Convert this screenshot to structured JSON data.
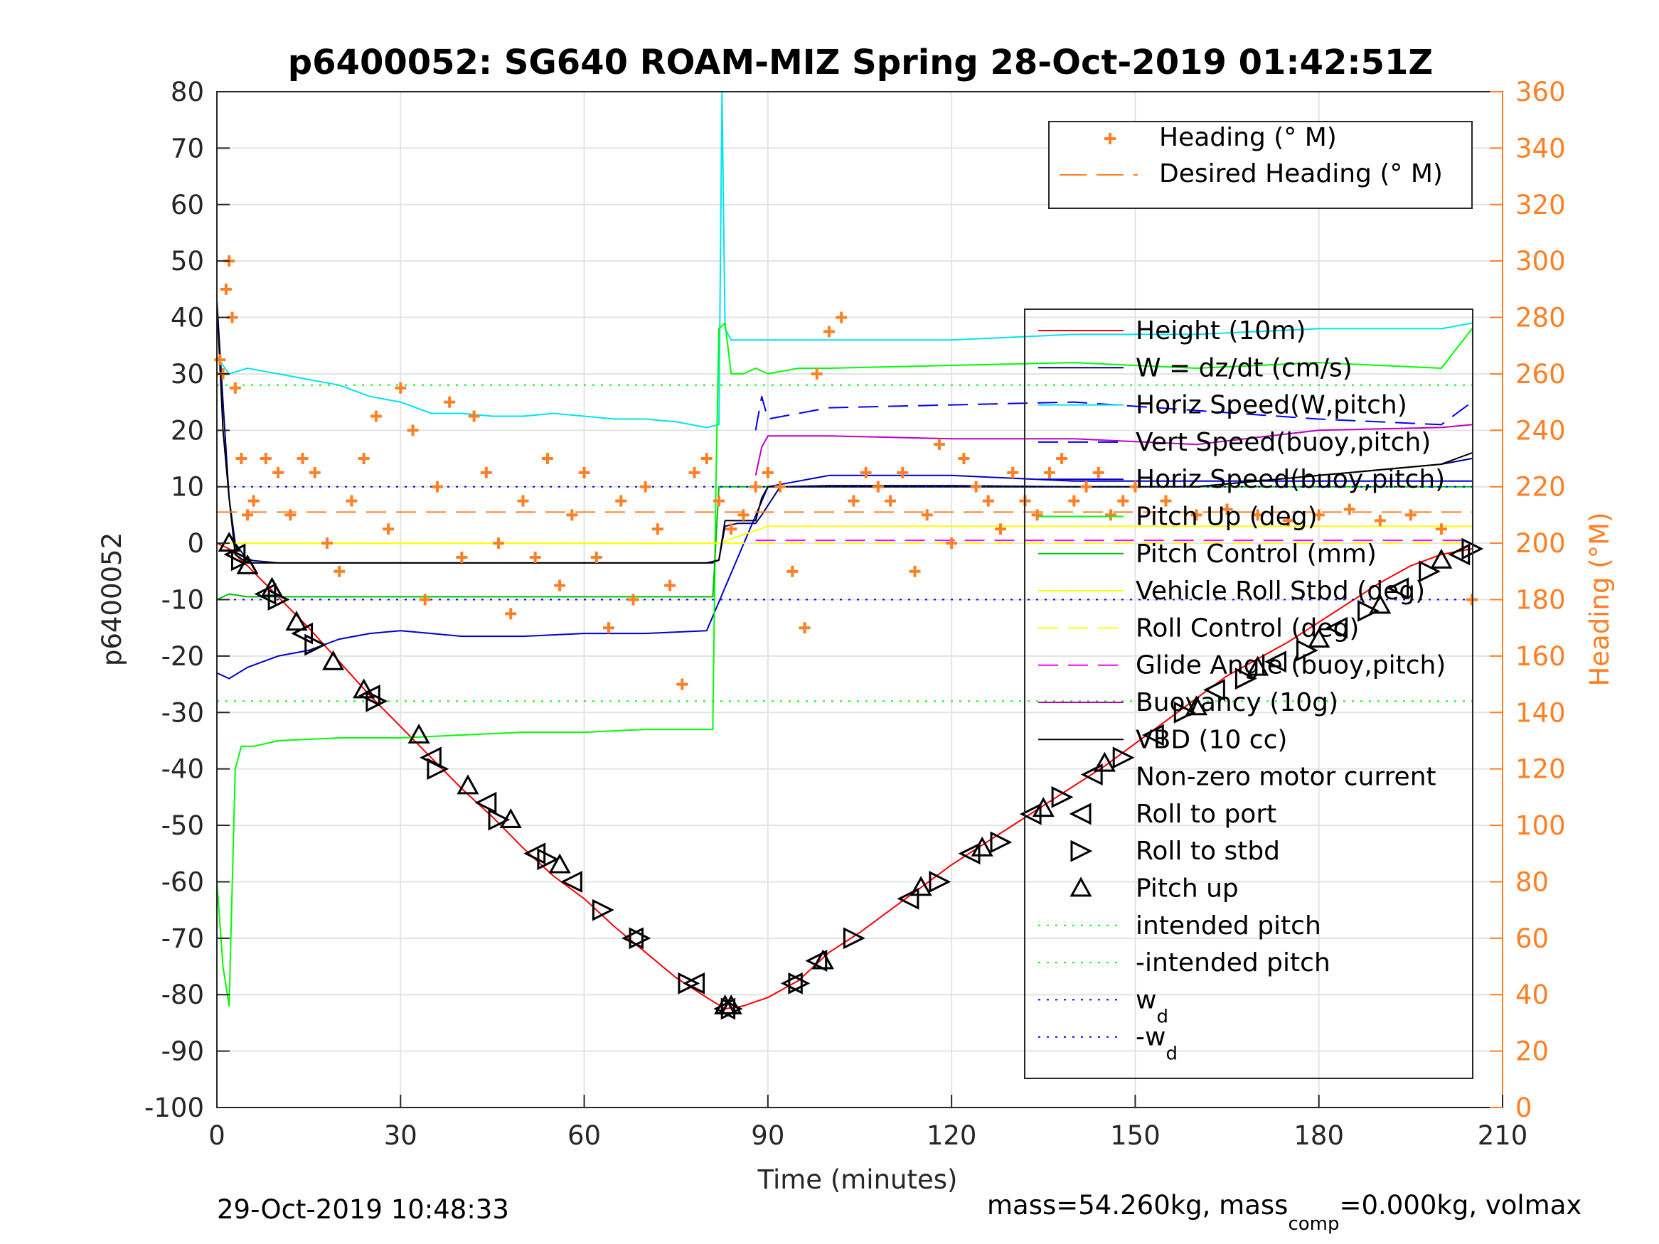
{
  "chart_data": {
    "type": "line",
    "title": "p6400052: SG640 ROAM-MIZ Spring 28-Oct-2019 01:42:51Z",
    "xlabel": "Time (minutes)",
    "ylabel": "p6400052",
    "y2label": "Heading (°M)",
    "xlim": [
      0,
      210
    ],
    "ylim": [
      -100,
      80
    ],
    "y2lim": [
      0,
      360
    ],
    "xticks": [
      "0",
      "30",
      "60",
      "90",
      "120",
      "150",
      "180",
      "210"
    ],
    "yticks": [
      "80",
      "70",
      "60",
      "50",
      "40",
      "30",
      "20",
      "10",
      "0",
      "-10",
      "-20",
      "-30",
      "-40",
      "-50",
      "-60",
      "-70",
      "-80",
      "-90",
      "-100"
    ],
    "y2ticks": [
      "360",
      "340",
      "320",
      "300",
      "280",
      "260",
      "240",
      "220",
      "200",
      "180",
      "160",
      "140",
      "120",
      "100",
      "80",
      "60",
      "40",
      "20",
      "0"
    ],
    "grid": true,
    "colors": {
      "height": "#ff0000",
      "w": "#000080",
      "horiz_w": "#00ffff",
      "vert_buoy": "#0000ff",
      "horiz_buoy": "#0000cd",
      "pitch": "#00ff00",
      "pitch_control": "#00c000",
      "roll": "#ffff00",
      "glide": "#ff00ff",
      "buoyancy": "#c000c0",
      "vbd": "#000000",
      "heading": "#ff7f24",
      "intended": "#00ff00",
      "wd": "#0000ff"
    },
    "series": [
      {
        "name": "Height (10m)",
        "x": [
          0,
          2,
          5,
          10,
          15,
          20,
          25,
          30,
          35,
          40,
          45,
          50,
          55,
          60,
          65,
          70,
          75,
          80,
          83,
          86,
          90,
          95,
          100,
          105,
          110,
          115,
          120,
          125,
          130,
          135,
          140,
          145,
          150,
          155,
          160,
          165,
          170,
          175,
          180,
          185,
          190,
          195,
          200,
          205
        ],
        "y": [
          0,
          -1,
          -4,
          -9.5,
          -15,
          -21,
          -27,
          -32.5,
          -38,
          -43.5,
          -48.5,
          -54,
          -59,
          -63,
          -68,
          -72.5,
          -77,
          -80.5,
          -82.5,
          -82,
          -80.5,
          -77.5,
          -72.5,
          -69,
          -65,
          -61,
          -57,
          -53.5,
          -50,
          -46.5,
          -43,
          -39.5,
          -35.5,
          -31.5,
          -27.5,
          -23.5,
          -20.5,
          -17.5,
          -14,
          -10.5,
          -7,
          -4,
          -2,
          -1
        ]
      },
      {
        "name": "W = dz/dt (cm/s)",
        "x": [
          0,
          1,
          2,
          3,
          5,
          10,
          20,
          30,
          40,
          50,
          60,
          70,
          80,
          81,
          82,
          83,
          85,
          88,
          89,
          92,
          100,
          120,
          140,
          160,
          180,
          200,
          205
        ],
        "y": [
          43,
          25,
          8,
          0,
          -3,
          -3.5,
          -3.5,
          -3.5,
          -3.5,
          -3.5,
          -3.5,
          -3.5,
          -3.5,
          -3.5,
          -3,
          3,
          3.5,
          3.5,
          5,
          10,
          10.2,
          10.2,
          10,
          10,
          12,
          14,
          15
        ]
      },
      {
        "name": "Horiz Speed(W,pitch)",
        "x": [
          0,
          2,
          5,
          10,
          15,
          20,
          25,
          30,
          35,
          40,
          45,
          50,
          55,
          60,
          65,
          70,
          75,
          80,
          82,
          82.5,
          83,
          84,
          88,
          92,
          100,
          120,
          140,
          160,
          180,
          190,
          200,
          205
        ],
        "y": [
          33,
          30,
          31,
          30,
          29,
          28,
          26,
          25,
          23,
          23,
          22.5,
          22.5,
          23,
          22.5,
          22,
          22,
          21.5,
          20.5,
          21,
          80,
          38,
          36,
          36,
          36,
          36,
          36,
          37,
          37,
          38,
          38,
          38,
          39
        ]
      },
      {
        "name": "Vert Speed(buoy,pitch)",
        "x": [
          88,
          89,
          90,
          95,
          100,
          120,
          140,
          160,
          180,
          200,
          205
        ],
        "y": [
          20,
          26,
          22,
          23,
          24,
          24.5,
          25,
          23.5,
          22,
          21,
          25
        ]
      },
      {
        "name": "Horiz Speed(buoy,pitch)",
        "x": [
          0,
          2,
          5,
          10,
          15,
          20,
          25,
          30,
          35,
          40,
          50,
          60,
          70,
          80,
          90,
          100,
          120,
          140,
          160,
          180,
          200,
          205
        ],
        "y": [
          -23,
          -24,
          -22,
          -20,
          -19,
          -17,
          -16,
          -15.5,
          -16,
          -16.5,
          -16.5,
          -16,
          -16,
          -15.5,
          10,
          12,
          12,
          11,
          11,
          11,
          11,
          11
        ]
      },
      {
        "name": "Pitch Up (deg)",
        "x": [
          0,
          1,
          2,
          3,
          4,
          6,
          10,
          20,
          30,
          40,
          50,
          60,
          70,
          80,
          81,
          81.5,
          82,
          83,
          84,
          86,
          88,
          90,
          95,
          100,
          120,
          140,
          160,
          180,
          200,
          205
        ],
        "y": [
          -60,
          -75,
          -82,
          -40,
          -36,
          -36,
          -35,
          -34.5,
          -34.5,
          -34,
          -33.5,
          -33.5,
          -33,
          -33,
          -33,
          10,
          38,
          39,
          30,
          30,
          31,
          30,
          31,
          31,
          31.5,
          32,
          31,
          32,
          31,
          38
        ]
      },
      {
        "name": "Pitch Control (mm)",
        "x": [
          0,
          2,
          5,
          10,
          20,
          40,
          60,
          80,
          81,
          82,
          85,
          100,
          120,
          140,
          160,
          180,
          200,
          205
        ],
        "y": [
          -10,
          -9,
          -9.5,
          -9.5,
          -9.5,
          -9.5,
          -9.5,
          -9.5,
          -9.5,
          10,
          10,
          10,
          10,
          10,
          10,
          10,
          10,
          10
        ]
      },
      {
        "name": "Vehicle Roll Stbd (deg)",
        "x": [
          0,
          5,
          10,
          20,
          30,
          40,
          50,
          60,
          70,
          80,
          82,
          90,
          100,
          120,
          140,
          160,
          180,
          200,
          205
        ],
        "y": [
          0,
          0,
          0,
          0,
          0,
          0,
          0,
          0,
          0,
          0,
          0,
          3,
          3,
          3,
          3,
          3,
          3,
          3,
          3
        ]
      },
      {
        "name": "Roll Control (deg)",
        "x": [
          0,
          205
        ],
        "y": [
          0,
          0
        ]
      },
      {
        "name": "Glide Angle (buoy,pitch)",
        "x": [
          88,
          205
        ],
        "y": [
          0.5,
          0.5
        ]
      },
      {
        "name": "Buoyancy (10g)",
        "x": [
          88,
          89,
          90,
          100,
          120,
          140,
          150,
          160,
          180,
          200,
          205
        ],
        "y": [
          12,
          17,
          19,
          19,
          18.5,
          18.5,
          18,
          17.5,
          20,
          20.5,
          21
        ]
      },
      {
        "name": "VBD (10 cc)",
        "x": [
          0,
          1,
          2,
          3,
          5,
          10,
          20,
          40,
          60,
          80,
          82,
          83,
          88,
          89,
          90,
          100,
          120,
          140,
          160,
          180,
          200,
          205
        ],
        "y": [
          43,
          20,
          8,
          -2,
          -3.5,
          -3.5,
          -3.5,
          -3.5,
          -3.5,
          -3.5,
          -3,
          4,
          4,
          8,
          10,
          10,
          10,
          10,
          10,
          12,
          14,
          16
        ]
      },
      {
        "name": "intended pitch",
        "x": [
          0,
          205
        ],
        "y": [
          28,
          28
        ]
      },
      {
        "name": "-intended pitch",
        "x": [
          0,
          205
        ],
        "y": [
          -28,
          -28
        ]
      },
      {
        "name": "w_d",
        "x": [
          0,
          205
        ],
        "y": [
          10,
          10
        ]
      },
      {
        "name": "-w_d",
        "x": [
          0,
          205
        ],
        "y": [
          -10,
          -10
        ]
      },
      {
        "name": "Heading (° M)",
        "axis": "right",
        "x": [
          0.5,
          1,
          1.5,
          2,
          2.5,
          3,
          4,
          5,
          6,
          8,
          10,
          12,
          14,
          16,
          18,
          20,
          22,
          24,
          26,
          28,
          30,
          32,
          34,
          36,
          38,
          40,
          42,
          44,
          46,
          48,
          50,
          52,
          54,
          56,
          58,
          60,
          62,
          64,
          66,
          68,
          70,
          72,
          74,
          76,
          78,
          80,
          82,
          84,
          86,
          88,
          90,
          92,
          94,
          96,
          98,
          100,
          102,
          104,
          106,
          108,
          110,
          112,
          114,
          116,
          118,
          120,
          122,
          124,
          126,
          128,
          130,
          132,
          134,
          136,
          138,
          140,
          142,
          144,
          146,
          148,
          150,
          155,
          160,
          165,
          170,
          175,
          180,
          185,
          190,
          195,
          200,
          205
        ],
        "y": [
          265,
          260,
          290,
          300,
          280,
          255,
          230,
          210,
          215,
          230,
          225,
          210,
          230,
          225,
          200,
          190,
          215,
          230,
          245,
          205,
          255,
          240,
          180,
          220,
          250,
          195,
          245,
          225,
          200,
          175,
          215,
          195,
          230,
          185,
          210,
          225,
          195,
          170,
          215,
          180,
          220,
          205,
          185,
          150,
          225,
          230,
          215,
          205,
          210,
          220,
          225,
          220,
          190,
          170,
          260,
          275,
          280,
          215,
          225,
          220,
          215,
          225,
          190,
          210,
          235,
          200,
          230,
          220,
          215,
          205,
          225,
          215,
          210,
          225,
          230,
          215,
          220,
          225,
          210,
          215,
          220,
          215,
          210,
          212,
          210,
          208,
          210,
          212,
          208,
          210,
          205,
          180
        ]
      },
      {
        "name": "Desired Heading (° M)",
        "axis": "right",
        "x": [
          0,
          205
        ],
        "y": [
          211,
          211
        ]
      },
      {
        "name": "Roll to port",
        "marker": "left-triangle",
        "x": [
          3,
          8,
          14,
          25,
          35,
          44,
          52,
          58,
          68,
          78,
          83,
          94,
          98,
          113,
          123,
          133,
          143,
          153,
          163,
          173,
          183,
          193,
          203
        ],
        "y": [
          -2,
          -9,
          -16,
          -27,
          -38,
          -46,
          -55,
          -60,
          -70,
          -78,
          -82.5,
          -78,
          -74,
          -63,
          -55,
          -48,
          -41,
          -34,
          -26,
          -21,
          -15,
          -8,
          -2
        ]
      },
      {
        "name": "Roll to stbd",
        "marker": "right-triangle",
        "x": [
          4,
          10,
          16,
          26,
          36,
          46,
          54,
          63,
          69,
          77,
          84,
          95,
          104,
          118,
          128,
          138,
          148,
          158,
          168,
          178,
          188,
          198,
          205
        ],
        "y": [
          -3,
          -10,
          -18,
          -28,
          -40,
          -49,
          -56,
          -65,
          -70,
          -78,
          -82.5,
          -78,
          -70,
          -60,
          -53,
          -45,
          -38,
          -30,
          -24,
          -19,
          -12,
          -5,
          -1
        ]
      },
      {
        "name": "Pitch up",
        "marker": "up-triangle",
        "x": [
          2,
          5,
          9,
          13,
          19,
          24,
          33,
          41,
          48,
          56,
          83,
          84,
          99,
          115,
          125,
          135,
          145,
          160,
          170,
          180,
          190,
          200
        ],
        "y": [
          0,
          -4,
          -8,
          -14,
          -21,
          -26,
          -34,
          -43,
          -49,
          -57,
          -82,
          -82,
          -74,
          -61,
          -54,
          -47,
          -39,
          -29,
          -22,
          -17,
          -11,
          -3
        ]
      }
    ]
  },
  "legend_top": [
    {
      "label": "Heading (° M)"
    },
    {
      "label": "Desired Heading (° M)"
    }
  ],
  "legend_main": [
    {
      "label": "Height (10m)"
    },
    {
      "label": "W = dz/dt (cm/s)"
    },
    {
      "label": "Horiz Speed(W,pitch)"
    },
    {
      "label": "Vert Speed(buoy,pitch)"
    },
    {
      "label": "Horiz Speed(buoy,pitch)"
    },
    {
      "label": "Pitch Up (deg)"
    },
    {
      "label": "Pitch Control (mm)"
    },
    {
      "label": "Vehicle Roll Stbd (deg)"
    },
    {
      "label": "Roll Control (deg)"
    },
    {
      "label": "Glide Angle (buoy,pitch)"
    },
    {
      "label": "Buoyancy (10g)"
    },
    {
      "label": "VBD (10 cc)"
    },
    {
      "label": "Non-zero motor current"
    },
    {
      "label": "Roll to port"
    },
    {
      "label": "Roll to stbd"
    },
    {
      "label": "Pitch up"
    },
    {
      "label": "intended pitch"
    },
    {
      "label": "-intended pitch"
    },
    {
      "label": "w",
      "sub": "d"
    },
    {
      "label": "-w",
      "sub": "d"
    }
  ],
  "footer": {
    "date": "29-Oct-2019 10:48:33",
    "mass_text_a": "mass=54.260kg, mass",
    "mass_sub": "comp",
    "mass_text_b": "=0.000kg, volmax"
  }
}
